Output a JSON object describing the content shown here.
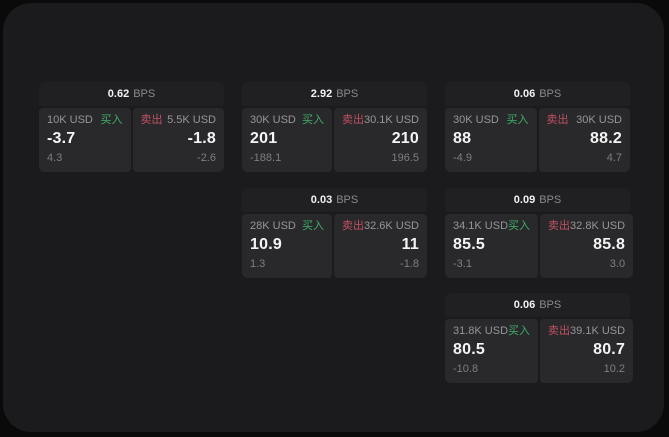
{
  "labels": {
    "bps_unit": "BPS",
    "buy": "买入",
    "sell": "卖出"
  },
  "colors": {
    "panel_bg": "#1b1b1d",
    "outer_bg": "#0a0a0b",
    "card_header_bg": "#202023",
    "tile_bg": "#29292b",
    "buy_green": "#3fae68",
    "sell_red": "#c25062",
    "primary_text": "#f4f4f5",
    "muted_text": "#96969a"
  },
  "cards": [
    {
      "row": 0,
      "col": 0,
      "bps": "0.62",
      "buy": {
        "amount": "10K USD",
        "price": "-3.7",
        "change": "4.3"
      },
      "sell": {
        "amount": "5.5K USD",
        "price": "-1.8",
        "change": "-2.6"
      }
    },
    {
      "row": 0,
      "col": 1,
      "bps": "2.92",
      "buy": {
        "amount": "30K USD",
        "price": "201",
        "change": "-188.1"
      },
      "sell": {
        "amount": "30.1K USD",
        "price": "210",
        "change": "196.5"
      }
    },
    {
      "row": 0,
      "col": 2,
      "bps": "0.06",
      "buy": {
        "amount": "30K USD",
        "price": "88",
        "change": "-4.9"
      },
      "sell": {
        "amount": "30K USD",
        "price": "88.2",
        "change": "4.7"
      }
    },
    {
      "row": 1,
      "col": 1,
      "bps": "0.03",
      "buy": {
        "amount": "28K USD",
        "price": "10.9",
        "change": "1.3"
      },
      "sell": {
        "amount": "32.6K USD",
        "price": "11",
        "change": "-1.8"
      }
    },
    {
      "row": 1,
      "col": 2,
      "bps": "0.09",
      "buy": {
        "amount": "34.1K USD",
        "price": "85.5",
        "change": "-3.1"
      },
      "sell": {
        "amount": "32.8K USD",
        "price": "85.8",
        "change": "3.0"
      }
    },
    {
      "row": 2,
      "col": 2,
      "bps": "0.06",
      "buy": {
        "amount": "31.8K USD",
        "price": "80.5",
        "change": "-10.8"
      },
      "sell": {
        "amount": "39.1K USD",
        "price": "80.7",
        "change": "10.2"
      }
    }
  ]
}
